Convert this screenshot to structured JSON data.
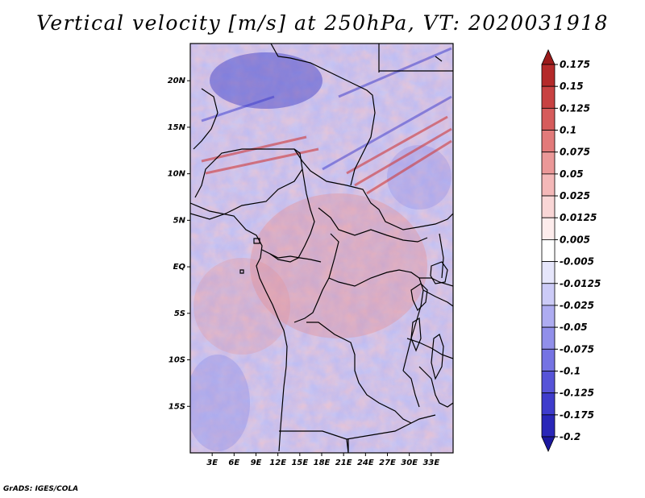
{
  "title": "Vertical velocity [m/s] at 250hPa, VT: 2020031918",
  "credit": "GrADS: IGES/COLA",
  "map": {
    "field": "Vertical velocity",
    "units": "m/s",
    "level": "250hPa",
    "valid_time": "2020031918",
    "lon_range": [
      0,
      36
    ],
    "lat_range": [
      -20,
      24
    ],
    "lat_ticks": [
      {
        "value": 20,
        "label": "20N"
      },
      {
        "value": 15,
        "label": "15N"
      },
      {
        "value": 10,
        "label": "10N"
      },
      {
        "value": 5,
        "label": "5N"
      },
      {
        "value": 0,
        "label": "EQ"
      },
      {
        "value": -5,
        "label": "5S"
      },
      {
        "value": -10,
        "label": "10S"
      },
      {
        "value": -15,
        "label": "15S"
      }
    ],
    "lon_ticks": [
      {
        "value": 3,
        "label": "3E"
      },
      {
        "value": 6,
        "label": "6E"
      },
      {
        "value": 9,
        "label": "9E"
      },
      {
        "value": 12,
        "label": "12E"
      },
      {
        "value": 15,
        "label": "15E"
      },
      {
        "value": 18,
        "label": "18E"
      },
      {
        "value": 21,
        "label": "21E"
      },
      {
        "value": 24,
        "label": "24E"
      },
      {
        "value": 27,
        "label": "27E"
      },
      {
        "value": 30,
        "label": "30E"
      },
      {
        "value": 33,
        "label": "33E"
      }
    ]
  },
  "colorbar": {
    "colors": [
      "#9b1b1b",
      "#b42a2a",
      "#c84242",
      "#d65c5c",
      "#e27a7a",
      "#eb9898",
      "#f4b8b8",
      "#f9d6d6",
      "#fdecec",
      "#ffffff",
      "#e6e6fb",
      "#cccbf7",
      "#aeacf1",
      "#918fea",
      "#7573e3",
      "#5754d8",
      "#3f3ccc",
      "#2a27b8",
      "#1c189f"
    ],
    "labels": [
      "0.175",
      "0.15",
      "0.125",
      "0.1",
      "0.075",
      "0.05",
      "0.025",
      "0.0125",
      "0.005",
      "-0.005",
      "-0.0125",
      "-0.025",
      "-0.05",
      "-0.075",
      "-0.1",
      "-0.125",
      "-0.175",
      "-0.2"
    ]
  }
}
